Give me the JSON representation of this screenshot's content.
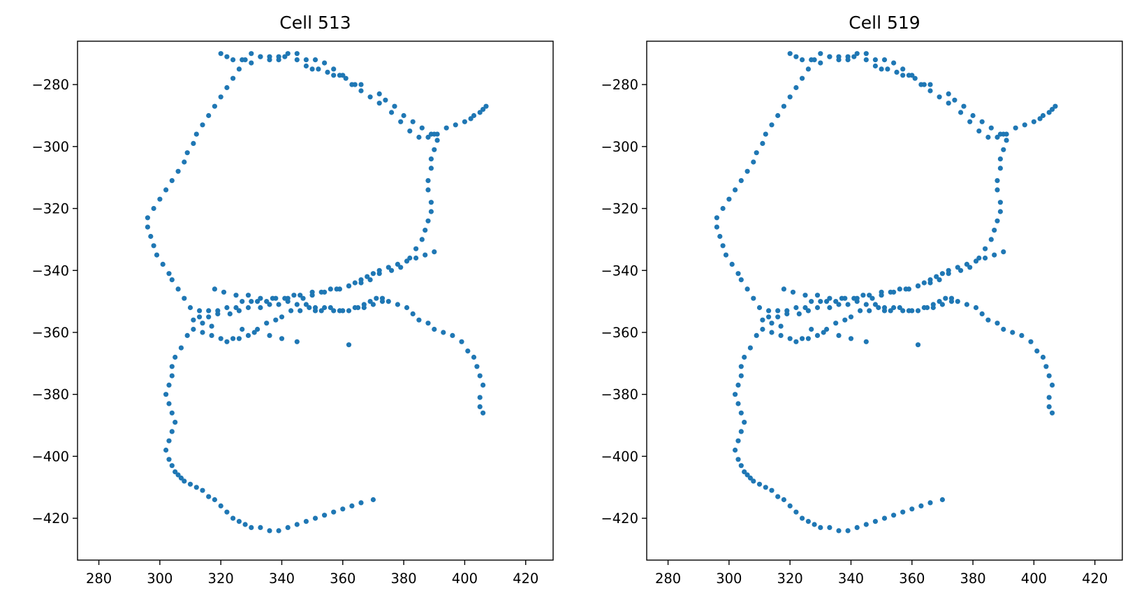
{
  "chart_data": [
    {
      "type": "scatter",
      "title": "Cell 513",
      "xlabel": "",
      "ylabel": "",
      "xlim": [
        273,
        429
      ],
      "ylim": [
        -433.5,
        -266
      ],
      "xticks": [
        280,
        300,
        320,
        340,
        360,
        380,
        400,
        420
      ],
      "yticks": [
        -280,
        -300,
        -320,
        -340,
        -360,
        -380,
        -400,
        -420
      ],
      "grid": false,
      "series": [
        {
          "color": "#1f77b4",
          "x": [
            320,
            322,
            324,
            327,
            330,
            333,
            336,
            339,
            341,
            345,
            348,
            350,
            352,
            355,
            357,
            359,
            361,
            364,
            366,
            372,
            374,
            377,
            380,
            383,
            386,
            389,
            390,
            391,
            390,
            389,
            389,
            388,
            388,
            389,
            389,
            388,
            387,
            386,
            384,
            382,
            379,
            376,
            372,
            369,
            366,
            362,
            359,
            356,
            353,
            350,
            347,
            344,
            341,
            338,
            335,
            332,
            330,
            327,
            325,
            322,
            319,
            316,
            313,
            310,
            308,
            306,
            304,
            303,
            301,
            299,
            298,
            297,
            296,
            296,
            298,
            300,
            302,
            304,
            306,
            308,
            309,
            311,
            312,
            314,
            316,
            318,
            320,
            322,
            324,
            326,
            328,
            330,
            333,
            336,
            339,
            342,
            345,
            348,
            351,
            354,
            357,
            360,
            363,
            366,
            369,
            372,
            376,
            379,
            382,
            385,
            388,
            391,
            394,
            397,
            400,
            402,
            403,
            405,
            406,
            407,
            406,
            405,
            405,
            406,
            405,
            404,
            403,
            401,
            399,
            396,
            393,
            390,
            388,
            385,
            383,
            381,
            378,
            375,
            373,
            371,
            369,
            367,
            365,
            362,
            359,
            356,
            353,
            351,
            349,
            346,
            343,
            340,
            338,
            335,
            332,
            329,
            326,
            324,
            322,
            320,
            317,
            314,
            311,
            309,
            307,
            305,
            304,
            304,
            303,
            302,
            303,
            304,
            305,
            304,
            303,
            302,
            303,
            304,
            305,
            306,
            307,
            308,
            310,
            312,
            314,
            316,
            318,
            320,
            322,
            324,
            326,
            328,
            330,
            333,
            336,
            339,
            342,
            345,
            348,
            351,
            354,
            357,
            360,
            363,
            366,
            370,
            311,
            314,
            317,
            327,
            331,
            336,
            340,
            345,
            362,
            318,
            321,
            325,
            329,
            333,
            337,
            342,
            346,
            350,
            354,
            358,
            362,
            364,
            366,
            368,
            370,
            372,
            375,
            378,
            381,
            384,
            387,
            390,
            313,
            316,
            319,
            323,
            326,
            329,
            333,
            336,
            339,
            342,
            345,
            348,
            351,
            354,
            357,
            360,
            364,
            367,
            370,
            373
          ],
          "y": [
            -270,
            -271,
            -272,
            -272,
            -273,
            -271,
            -272,
            -272,
            -271,
            -272,
            -274,
            -275,
            -275,
            -276,
            -277,
            -277,
            -278,
            -280,
            -280,
            -283,
            -285,
            -287,
            -290,
            -292,
            -294,
            -296,
            -296,
            -298,
            -301,
            -304,
            -307,
            -311,
            -314,
            -318,
            -321,
            -324,
            -327,
            -330,
            -333,
            -336,
            -339,
            -340,
            -341,
            -343,
            -344,
            -345,
            -346,
            -346,
            -347,
            -347,
            -349,
            -348,
            -349,
            -349,
            -350,
            -350,
            -350,
            -350,
            -352,
            -352,
            -353,
            -353,
            -353,
            -352,
            -349,
            -346,
            -343,
            -341,
            -338,
            -335,
            -332,
            -329,
            -326,
            -323,
            -320,
            -317,
            -314,
            -311,
            -308,
            -305,
            -302,
            -299,
            -296,
            -293,
            -290,
            -287,
            -284,
            -281,
            -278,
            -275,
            -272,
            -270,
            -271,
            -271,
            -271,
            -270,
            -270,
            -272,
            -272,
            -273,
            -275,
            -277,
            -280,
            -282,
            -284,
            -286,
            -289,
            -292,
            -295,
            -297,
            -297,
            -296,
            -294,
            -293,
            -292,
            -291,
            -290,
            -289,
            -288,
            -287,
            -386,
            -384,
            -381,
            -377,
            -374,
            -371,
            -368,
            -366,
            -363,
            -361,
            -360,
            -359,
            -357,
            -356,
            -354,
            -352,
            -351,
            -350,
            -349,
            -349,
            -350,
            -351,
            -352,
            -353,
            -353,
            -352,
            -353,
            -353,
            -352,
            -353,
            -353,
            -355,
            -356,
            -357,
            -359,
            -361,
            -362,
            -362,
            -363,
            -362,
            -361,
            -360,
            -359,
            -361,
            -365,
            -368,
            -371,
            -374,
            -377,
            -380,
            -383,
            -386,
            -389,
            -392,
            -395,
            -398,
            -401,
            -403,
            -405,
            -406,
            -407,
            -408,
            -409,
            -410,
            -411,
            -413,
            -414,
            -416,
            -418,
            -420,
            -421,
            -422,
            -423,
            -423,
            -424,
            -424,
            -423,
            -422,
            -421,
            -420,
            -419,
            -418,
            -417,
            -416,
            -415,
            -414,
            -356,
            -357,
            -358,
            -359,
            -360,
            -361,
            -362,
            -363,
            -364,
            -346,
            -347,
            -348,
            -348,
            -349,
            -349,
            -349,
            -348,
            -348,
            -347,
            -346,
            -345,
            -344,
            -343,
            -342,
            -341,
            -340,
            -339,
            -338,
            -337,
            -336,
            -335,
            -334,
            -355,
            -355,
            -354,
            -354,
            -353,
            -352,
            -352,
            -351,
            -351,
            -350,
            -351,
            -351,
            -352,
            -352,
            -353,
            -353,
            -352,
            -352,
            -351,
            -350
          ]
        }
      ]
    },
    {
      "type": "scatter",
      "title": "Cell 519",
      "xlabel": "",
      "ylabel": "",
      "xlim": [
        273,
        429
      ],
      "ylim": [
        -433.5,
        -266
      ],
      "xticks": [
        280,
        300,
        320,
        340,
        360,
        380,
        400,
        420
      ],
      "yticks": [
        -280,
        -300,
        -320,
        -340,
        -360,
        -380,
        -400,
        -420
      ],
      "grid": false,
      "series": [
        {
          "color": "#1f77b4",
          "x": [
            320,
            322,
            324,
            327,
            330,
            333,
            336,
            339,
            341,
            345,
            348,
            350,
            352,
            355,
            357,
            359,
            361,
            364,
            366,
            372,
            374,
            377,
            380,
            383,
            386,
            389,
            390,
            391,
            390,
            389,
            389,
            388,
            388,
            389,
            389,
            388,
            387,
            386,
            384,
            382,
            379,
            376,
            372,
            369,
            366,
            362,
            359,
            356,
            353,
            350,
            347,
            344,
            341,
            338,
            335,
            332,
            330,
            327,
            325,
            322,
            319,
            316,
            313,
            310,
            308,
            306,
            304,
            303,
            301,
            299,
            298,
            297,
            296,
            296,
            298,
            300,
            302,
            304,
            306,
            308,
            309,
            311,
            312,
            314,
            316,
            318,
            320,
            322,
            324,
            326,
            328,
            330,
            333,
            336,
            339,
            342,
            345,
            348,
            351,
            354,
            357,
            360,
            363,
            366,
            369,
            372,
            376,
            379,
            382,
            385,
            388,
            391,
            394,
            397,
            400,
            402,
            403,
            405,
            406,
            407,
            406,
            405,
            405,
            406,
            405,
            404,
            403,
            401,
            399,
            396,
            393,
            390,
            388,
            385,
            383,
            381,
            378,
            375,
            373,
            371,
            369,
            367,
            365,
            362,
            359,
            356,
            353,
            351,
            349,
            346,
            343,
            340,
            338,
            335,
            332,
            329,
            326,
            324,
            322,
            320,
            317,
            314,
            311,
            309,
            307,
            305,
            304,
            304,
            303,
            302,
            303,
            304,
            305,
            304,
            303,
            302,
            303,
            304,
            305,
            306,
            307,
            308,
            310,
            312,
            314,
            316,
            318,
            320,
            322,
            324,
            326,
            328,
            330,
            333,
            336,
            339,
            342,
            345,
            348,
            351,
            354,
            357,
            360,
            363,
            366,
            370,
            311,
            314,
            317,
            327,
            331,
            336,
            340,
            345,
            362,
            318,
            321,
            325,
            329,
            333,
            337,
            342,
            346,
            350,
            354,
            358,
            362,
            364,
            366,
            368,
            370,
            372,
            375,
            378,
            381,
            384,
            387,
            390,
            313,
            316,
            319,
            323,
            326,
            329,
            333,
            336,
            339,
            342,
            345,
            348,
            351,
            354,
            357,
            360,
            364,
            367,
            370,
            373
          ],
          "y": [
            -270,
            -271,
            -272,
            -272,
            -273,
            -271,
            -272,
            -272,
            -271,
            -272,
            -274,
            -275,
            -275,
            -276,
            -277,
            -277,
            -278,
            -280,
            -280,
            -283,
            -285,
            -287,
            -290,
            -292,
            -294,
            -296,
            -296,
            -298,
            -301,
            -304,
            -307,
            -311,
            -314,
            -318,
            -321,
            -324,
            -327,
            -330,
            -333,
            -336,
            -339,
            -340,
            -341,
            -343,
            -344,
            -345,
            -346,
            -346,
            -347,
            -347,
            -349,
            -348,
            -349,
            -349,
            -350,
            -350,
            -350,
            -350,
            -352,
            -352,
            -353,
            -353,
            -353,
            -352,
            -349,
            -346,
            -343,
            -341,
            -338,
            -335,
            -332,
            -329,
            -326,
            -323,
            -320,
            -317,
            -314,
            -311,
            -308,
            -305,
            -302,
            -299,
            -296,
            -293,
            -290,
            -287,
            -284,
            -281,
            -278,
            -275,
            -272,
            -270,
            -271,
            -271,
            -271,
            -270,
            -270,
            -272,
            -272,
            -273,
            -275,
            -277,
            -280,
            -282,
            -284,
            -286,
            -289,
            -292,
            -295,
            -297,
            -297,
            -296,
            -294,
            -293,
            -292,
            -291,
            -290,
            -289,
            -288,
            -287,
            -386,
            -384,
            -381,
            -377,
            -374,
            -371,
            -368,
            -366,
            -363,
            -361,
            -360,
            -359,
            -357,
            -356,
            -354,
            -352,
            -351,
            -350,
            -349,
            -349,
            -350,
            -351,
            -352,
            -353,
            -353,
            -352,
            -353,
            -353,
            -352,
            -353,
            -353,
            -355,
            -356,
            -357,
            -359,
            -361,
            -362,
            -362,
            -363,
            -362,
            -361,
            -360,
            -359,
            -361,
            -365,
            -368,
            -371,
            -374,
            -377,
            -380,
            -383,
            -386,
            -389,
            -392,
            -395,
            -398,
            -401,
            -403,
            -405,
            -406,
            -407,
            -408,
            -409,
            -410,
            -411,
            -413,
            -414,
            -416,
            -418,
            -420,
            -421,
            -422,
            -423,
            -423,
            -424,
            -424,
            -423,
            -422,
            -421,
            -420,
            -419,
            -418,
            -417,
            -416,
            -415,
            -414,
            -356,
            -357,
            -358,
            -359,
            -360,
            -361,
            -362,
            -363,
            -364,
            -346,
            -347,
            -348,
            -348,
            -349,
            -349,
            -349,
            -348,
            -348,
            -347,
            -346,
            -345,
            -344,
            -343,
            -342,
            -341,
            -340,
            -339,
            -338,
            -337,
            -336,
            -335,
            -334,
            -355,
            -355,
            -354,
            -354,
            -353,
            -352,
            -352,
            -351,
            -351,
            -350,
            -351,
            -351,
            -352,
            -352,
            -353,
            -353,
            -352,
            -352,
            -351,
            -350
          ]
        }
      ]
    }
  ]
}
